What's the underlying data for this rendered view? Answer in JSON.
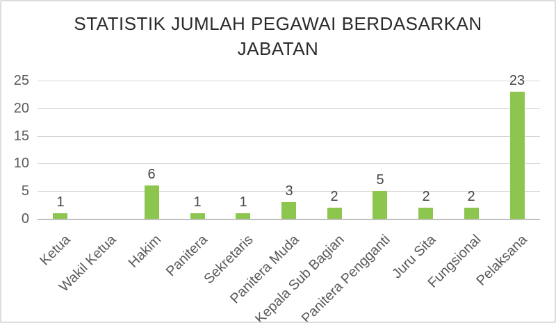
{
  "chart_data": {
    "type": "bar",
    "title": "STATISTIK JUMLAH PEGAWAI BERDASARKAN JABATAN",
    "categories": [
      "Ketua",
      "Wakil Ketua",
      "Hakim",
      "Panitera",
      "Sekretaris",
      "Panitera Muda",
      "Kepala Sub Bagian",
      "Panitera Pengganti",
      "Juru Sita",
      "Fungsional",
      "Pelaksana"
    ],
    "values": [
      1,
      0,
      6,
      1,
      1,
      3,
      2,
      5,
      2,
      2,
      23
    ],
    "yticks": [
      0,
      5,
      10,
      15,
      20,
      25
    ],
    "ylim": [
      0,
      25
    ],
    "xlabel": "",
    "ylabel": "",
    "grid": true,
    "legend_position": "none",
    "x_tick_rotation_deg": 45,
    "hide_zero_value_bars_and_labels": true,
    "colors": {
      "bar_fill": "#8cc64e",
      "gridline": "#d6d6d6",
      "axis_line": "#bfbfbf",
      "tick_text": "#595959",
      "value_label_text": "#444444",
      "title_text": "#2b2b2b",
      "background": "#ffffff",
      "frame_border": "#dcdcdc"
    }
  }
}
